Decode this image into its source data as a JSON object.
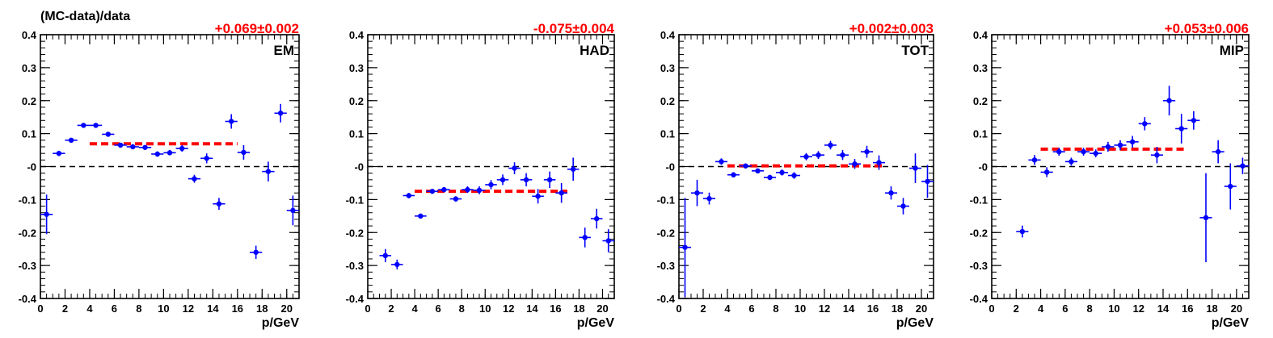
{
  "figure": {
    "ylabel": "(MC-data)/data",
    "xlabel": "p/GeV"
  },
  "colors": {
    "points": "#0000ff",
    "fit": "#ff0000",
    "fit_text": "#ff0000",
    "zero_line": "#000000"
  },
  "chart_data": [
    {
      "type": "scatter",
      "panel_label": "EM",
      "fit_text": "+0.069±0.002",
      "fit": {
        "value": 0.069,
        "error": 0.002,
        "x_range": [
          4,
          16
        ]
      },
      "xlabel": "p/GeV",
      "ylabel": "(MC-data)/data",
      "xlim": [
        0,
        21
      ],
      "ylim": [
        -0.4,
        0.4
      ],
      "x_ticks": [
        0,
        2,
        4,
        6,
        8,
        10,
        12,
        14,
        16,
        18,
        20
      ],
      "y_ticks": [
        "-0.4",
        "-0.3",
        "-0.2",
        "-0.1",
        "-0",
        "0.1",
        "0.2",
        "0.3",
        "0.4"
      ],
      "reference_line_y": 0,
      "series": [
        {
          "x": [
            0.5,
            1.5,
            2.5,
            3.5,
            4.5,
            5.5,
            6.5,
            7.5,
            8.5,
            9.5,
            10.5,
            11.5,
            12.5,
            13.5,
            14.5,
            15.5,
            16.5,
            17.5,
            18.5,
            19.5,
            20.5
          ],
          "y": [
            -0.145,
            0.04,
            0.08,
            0.125,
            0.125,
            0.098,
            0.065,
            0.06,
            0.058,
            0.038,
            0.042,
            0.055,
            -0.037,
            0.025,
            -0.113,
            0.137,
            0.043,
            -0.26,
            -0.015,
            0.162,
            -0.133
          ],
          "yerr": [
            0.06,
            0.008,
            0.006,
            0.005,
            0.005,
            0.006,
            0.006,
            0.006,
            0.007,
            0.008,
            0.008,
            0.01,
            0.012,
            0.015,
            0.018,
            0.022,
            0.022,
            0.02,
            0.03,
            0.028,
            0.045
          ]
        }
      ]
    },
    {
      "type": "scatter",
      "panel_label": "HAD",
      "fit_text": "-0.075±0.004",
      "fit": {
        "value": -0.075,
        "error": 0.004,
        "x_range": [
          4,
          17
        ]
      },
      "xlabel": "p/GeV",
      "xlim": [
        0,
        21
      ],
      "ylim": [
        -0.4,
        0.4
      ],
      "x_ticks": [
        0,
        2,
        4,
        6,
        8,
        10,
        12,
        14,
        16,
        18,
        20
      ],
      "y_ticks": [
        "-0.4",
        "-0.3",
        "-0.2",
        "-0.1",
        "-0",
        "0.1",
        "0.2",
        "0.3",
        "0.4"
      ],
      "reference_line_y": 0,
      "series": [
        {
          "x": [
            1.5,
            2.5,
            3.5,
            4.5,
            5.5,
            6.5,
            7.5,
            8.5,
            9.5,
            10.5,
            11.5,
            12.5,
            13.5,
            14.5,
            15.5,
            16.5,
            17.5,
            18.5,
            19.5,
            20.5
          ],
          "y": [
            -0.27,
            -0.297,
            -0.088,
            -0.15,
            -0.075,
            -0.07,
            -0.098,
            -0.07,
            -0.072,
            -0.055,
            -0.04,
            -0.005,
            -0.04,
            -0.09,
            -0.04,
            -0.08,
            -0.008,
            -0.215,
            -0.158,
            -0.225
          ],
          "yerr": [
            0.02,
            0.015,
            0.008,
            0.006,
            0.007,
            0.007,
            0.008,
            0.01,
            0.012,
            0.014,
            0.016,
            0.018,
            0.02,
            0.022,
            0.025,
            0.03,
            0.035,
            0.03,
            0.03,
            0.035
          ]
        }
      ]
    },
    {
      "type": "scatter",
      "panel_label": "TOT",
      "fit_text": "+0.002±0.003",
      "fit": {
        "value": 0.002,
        "error": 0.003,
        "x_range": [
          4,
          17
        ]
      },
      "xlabel": "p/GeV",
      "xlim": [
        0,
        21
      ],
      "ylim": [
        -0.4,
        0.4
      ],
      "x_ticks": [
        0,
        2,
        4,
        6,
        8,
        10,
        12,
        14,
        16,
        18,
        20
      ],
      "y_ticks": [
        "-0.4",
        "-0.3",
        "-0.2",
        "-0.1",
        "-0",
        "0.1",
        "0.2",
        "0.3",
        "0.4"
      ],
      "reference_line_y": 0,
      "series": [
        {
          "x": [
            0.5,
            1.5,
            2.5,
            3.5,
            4.5,
            5.5,
            6.5,
            7.5,
            8.5,
            9.5,
            10.5,
            11.5,
            12.5,
            13.5,
            14.5,
            15.5,
            16.5,
            17.5,
            18.5,
            19.5,
            20.5
          ],
          "y": [
            -0.245,
            -0.08,
            -0.097,
            0.015,
            -0.025,
            0.002,
            -0.013,
            -0.033,
            -0.018,
            -0.027,
            0.03,
            0.035,
            0.065,
            0.035,
            0.008,
            0.045,
            0.012,
            -0.08,
            -0.12,
            -0.005,
            -0.045
          ],
          "yerr": [
            0.15,
            0.04,
            0.018,
            0.01,
            0.008,
            0.006,
            0.007,
            0.008,
            0.009,
            0.01,
            0.011,
            0.012,
            0.013,
            0.015,
            0.015,
            0.018,
            0.022,
            0.02,
            0.025,
            0.045,
            0.05
          ]
        }
      ]
    },
    {
      "type": "scatter",
      "panel_label": "MIP",
      "fit_text": "+0.053±0.006",
      "fit": {
        "value": 0.053,
        "error": 0.006,
        "x_range": [
          4,
          16
        ]
      },
      "xlabel": "p/GeV",
      "xlim": [
        0,
        21
      ],
      "ylim": [
        -0.4,
        0.4
      ],
      "x_ticks": [
        0,
        2,
        4,
        6,
        8,
        10,
        12,
        14,
        16,
        18,
        20
      ],
      "y_ticks": [
        "-0.4",
        "-0.3",
        "-0.2",
        "-0.1",
        "-0",
        "0.1",
        "0.2",
        "0.3",
        "0.4"
      ],
      "reference_line_y": 0,
      "series": [
        {
          "x": [
            2.5,
            3.5,
            4.5,
            5.5,
            6.5,
            7.5,
            8.5,
            9.5,
            10.5,
            11.5,
            12.5,
            13.5,
            14.5,
            15.5,
            16.5,
            17.5,
            18.5,
            19.5,
            20.5
          ],
          "y": [
            -0.197,
            0.02,
            -0.017,
            0.045,
            0.015,
            0.045,
            0.04,
            0.06,
            0.065,
            0.075,
            0.13,
            0.035,
            0.2,
            0.115,
            0.14,
            -0.155,
            0.045,
            -0.06,
            0.002
          ],
          "yerr": [
            0.018,
            0.015,
            0.015,
            0.012,
            0.012,
            0.012,
            0.012,
            0.015,
            0.015,
            0.018,
            0.02,
            0.025,
            0.045,
            0.045,
            0.028,
            0.135,
            0.035,
            0.07,
            0.025
          ]
        }
      ]
    }
  ]
}
